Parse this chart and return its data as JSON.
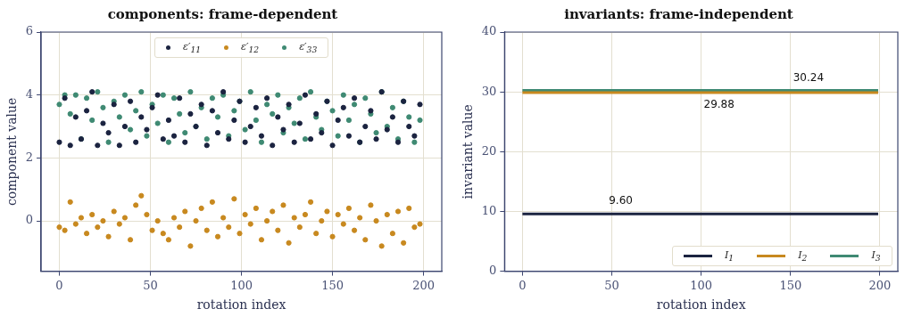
{
  "chart_data": [
    {
      "type": "scatter",
      "title": "components: frame-dependent",
      "xlabel": "rotation index",
      "ylabel": "component value",
      "legend": "top",
      "marker": "circle",
      "grid": true,
      "x": [
        0,
        3,
        6,
        9,
        12,
        15,
        18,
        21,
        24,
        27,
        30,
        33,
        36,
        39,
        42,
        45,
        48,
        51,
        54,
        57,
        60,
        63,
        66,
        69,
        72,
        75,
        78,
        81,
        84,
        87,
        90,
        93,
        96,
        99,
        102,
        105,
        108,
        111,
        114,
        117,
        120,
        123,
        126,
        129,
        132,
        135,
        138,
        141,
        144,
        147,
        150,
        153,
        156,
        159,
        162,
        165,
        168,
        171,
        174,
        177,
        180,
        183,
        186,
        189,
        192,
        195,
        198
      ],
      "series": [
        {
          "name": "ε′$_{11}$",
          "color": "#1b2340",
          "values": [
            2.5,
            3.9,
            2.4,
            3.3,
            2.6,
            3.5,
            4.1,
            2.4,
            3.1,
            2.8,
            3.7,
            2.4,
            3.0,
            3.8,
            2.5,
            3.3,
            2.9,
            3.6,
            4.0,
            2.6,
            3.2,
            2.7,
            3.9,
            2.5,
            3.4,
            3.0,
            3.7,
            2.4,
            3.5,
            2.8,
            4.1,
            2.6,
            3.2,
            3.8,
            2.5,
            3.0,
            3.6,
            2.7,
            3.9,
            2.4,
            3.3,
            2.9,
            3.7,
            2.5,
            3.1,
            4.0,
            2.6,
            3.4,
            2.8,
            3.8,
            2.4,
            3.2,
            3.6,
            2.7,
            3.9,
            2.5,
            3.0,
            3.5,
            2.6,
            4.1,
            2.9,
            3.3,
            2.5,
            3.8,
            3.0,
            2.7,
            3.7
          ]
        },
        {
          "name": "ε′$_{12}$",
          "color": "#c8891f",
          "values": [
            -0.2,
            -0.3,
            0.6,
            -0.1,
            0.1,
            -0.4,
            0.2,
            -0.2,
            0.0,
            -0.5,
            0.3,
            -0.1,
            0.1,
            -0.6,
            0.5,
            0.8,
            0.2,
            -0.3,
            0.0,
            -0.4,
            -0.6,
            0.1,
            -0.2,
            0.3,
            -0.8,
            0.0,
            0.4,
            -0.3,
            0.6,
            -0.5,
            0.1,
            -0.2,
            0.7,
            -0.4,
            0.2,
            -0.1,
            0.4,
            -0.6,
            0.0,
            0.3,
            -0.3,
            0.5,
            -0.7,
            0.1,
            -0.2,
            0.2,
            0.6,
            -0.4,
            0.0,
            0.3,
            -0.5,
            0.2,
            -0.1,
            0.4,
            -0.3,
            0.1,
            -0.6,
            0.5,
            0.0,
            -0.8,
            0.2,
            -0.4,
            0.3,
            -0.7,
            0.4,
            -0.2,
            -0.1
          ]
        },
        {
          "name": "ε′$_{33}$",
          "color": "#3f8a73",
          "values": [
            3.7,
            4.0,
            3.4,
            4.0,
            2.6,
            3.9,
            3.2,
            4.1,
            3.6,
            2.5,
            3.8,
            3.3,
            4.0,
            2.9,
            3.5,
            4.1,
            2.7,
            3.7,
            3.1,
            4.0,
            2.5,
            3.9,
            3.4,
            2.8,
            4.1,
            3.0,
            3.6,
            2.6,
            3.9,
            3.3,
            4.0,
            2.7,
            3.5,
            3.8,
            2.9,
            4.1,
            3.2,
            2.5,
            3.7,
            3.4,
            4.0,
            2.8,
            3.6,
            3.1,
            3.9,
            2.6,
            4.1,
            3.3,
            2.9,
            3.8,
            3.5,
            2.7,
            4.0,
            3.2,
            3.7,
            2.5,
            3.9,
            3.4,
            2.8,
            4.1,
            3.0,
            3.6,
            2.6,
            3.8,
            3.3,
            2.5,
            3.2
          ]
        }
      ],
      "xlim": [
        -10,
        210
      ],
      "xticks": [
        0,
        50,
        100,
        150,
        200
      ],
      "ylim": [
        -1.6,
        6
      ],
      "yticks": [
        0,
        2,
        4,
        6
      ]
    },
    {
      "type": "line",
      "title": "invariants: frame-independent",
      "xlabel": "rotation index",
      "ylabel": "invariant value",
      "legend": "bottom right",
      "marker": "none",
      "line_style": "solid",
      "grid": true,
      "x": [
        0,
        199
      ],
      "series": [
        {
          "name": "I$_{1}$",
          "color": "#1b2340",
          "values": [
            9.6,
            9.6
          ]
        },
        {
          "name": "I$_{2}$",
          "color": "#c8891f",
          "values": [
            29.88,
            29.88
          ]
        },
        {
          "name": "I$_{3}$",
          "color": "#3f8a73",
          "values": [
            30.24,
            30.24
          ]
        }
      ],
      "annotations": [
        {
          "text": "9.60",
          "x": 55,
          "y": 9.6
        },
        {
          "text": "29.88",
          "x": 110,
          "y": 29.88
        },
        {
          "text": "30.24",
          "x": 160,
          "y": 30.24
        }
      ],
      "xlim": [
        -10,
        210
      ],
      "xticks": [
        0,
        50,
        100,
        150,
        200
      ],
      "ylim": [
        0,
        40
      ],
      "yticks": [
        0,
        10,
        20,
        30,
        40
      ]
    }
  ]
}
